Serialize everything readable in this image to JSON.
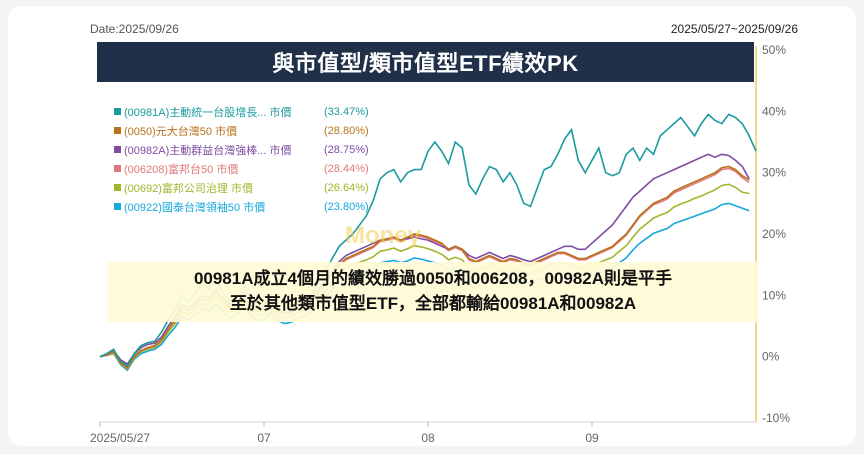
{
  "header": {
    "date_label": "Date:2025/09/26",
    "range_label": "2025/05/27~2025/09/26",
    "title": "與市值型/類市值型ETF績效PK"
  },
  "watermark": "Money",
  "caption": {
    "line1": "00981A成立4個月的績效勝過0050和006208，00982A則是平手",
    "line2": "至於其他類市值型ETF，全部都輸給00981A和00982A"
  },
  "chart_data": {
    "type": "line",
    "title": "與市值型/類市值型ETF績效PK",
    "xlabel": "",
    "ylabel": "",
    "ylim": [
      -10,
      50
    ],
    "y_ticks": [
      "50%",
      "40%",
      "30%",
      "20%",
      "10%",
      "0%",
      "-10%"
    ],
    "y_tick_values": [
      50,
      40,
      30,
      20,
      10,
      0,
      -10
    ],
    "x_ticks": [
      "2025/05/27",
      "07",
      "08",
      "09"
    ],
    "x_tick_positions": [
      0,
      24,
      48,
      72
    ],
    "grid": false,
    "legend_position": "top-left",
    "series": [
      {
        "name": "(00981A)主動統一台股增長... 市價",
        "label": "(33.47%)",
        "color": "#1b9aa0",
        "values": [
          0,
          0.5,
          1.2,
          -0.8,
          -1.5,
          0.5,
          1.8,
          2.3,
          2.5,
          4,
          6,
          7.5,
          10,
          9,
          10.5,
          12,
          11,
          12.5,
          10.5,
          9,
          9.5,
          11.5,
          9.5,
          8,
          8.5,
          10,
          8,
          7,
          7.5,
          8.5,
          9,
          10,
          12,
          14,
          16,
          18,
          19,
          20,
          21.5,
          23,
          25.5,
          29,
          30,
          30.5,
          28.5,
          30,
          30.5,
          30.5,
          33.5,
          35,
          33.5,
          31.5,
          35,
          34,
          28,
          26.5,
          29,
          31,
          30.5,
          28.5,
          30,
          28,
          25,
          24.5,
          27.5,
          30.5,
          31,
          33,
          35.5,
          37,
          32,
          30,
          32,
          34,
          30,
          29.5,
          30,
          33,
          34,
          32,
          34,
          33,
          36,
          37,
          38,
          39,
          37.5,
          36,
          38,
          39.5,
          38.5,
          38,
          39.5,
          39,
          38,
          36,
          33.5
        ]
      },
      {
        "name": "(0050)元大台灣50 市價",
        "label": "(28.80%)",
        "color": "#b8721c",
        "values": [
          0,
          0.3,
          0.8,
          -1,
          -1.8,
          0,
          1,
          1.5,
          1.8,
          2.8,
          4.5,
          6,
          8,
          7.5,
          8.5,
          9.5,
          9,
          10.5,
          9,
          8,
          8.5,
          10,
          8.5,
          7.5,
          7.8,
          9,
          7.5,
          7,
          7.2,
          8,
          8.5,
          9,
          10.5,
          12,
          13.5,
          15,
          16,
          16.5,
          17,
          17.5,
          18,
          19,
          19.2,
          19.5,
          19,
          19.5,
          20,
          19.8,
          19.5,
          19,
          18.5,
          17.5,
          18,
          17.5,
          16,
          15.5,
          16,
          16.5,
          16,
          15.5,
          16,
          15.8,
          15.2,
          15,
          15.5,
          16,
          16.5,
          17,
          17,
          16.5,
          16,
          16,
          16.5,
          17,
          17.5,
          18,
          19,
          20,
          21.5,
          23,
          24,
          25,
          25.5,
          26,
          27,
          27.5,
          28,
          28.5,
          29,
          29.5,
          30,
          30.8,
          31,
          30.5,
          29.5,
          28.8
        ]
      },
      {
        "name": "(00982A)主動群益台灣強棒... 市價",
        "label": "(28.75%)",
        "color": "#7e4ca2",
        "values": [
          0,
          0.4,
          1,
          -0.5,
          -1.2,
          0.4,
          1.5,
          2,
          2.2,
          3.2,
          5,
          6.5,
          8.5,
          8,
          9,
          10,
          9.5,
          11,
          9.5,
          8.5,
          9,
          10.5,
          9,
          8,
          8.2,
          9.5,
          8,
          7.2,
          7.5,
          8.5,
          9,
          9.5,
          11,
          12.5,
          14,
          15.5,
          16.5,
          17,
          17.5,
          18,
          18.5,
          19,
          19.2,
          19.5,
          19,
          19.2,
          19.5,
          19.2,
          19,
          18.5,
          18,
          17.5,
          18,
          17.5,
          16.5,
          16,
          16.5,
          17,
          16.5,
          16,
          16.5,
          16.2,
          15.8,
          15.5,
          16,
          16.5,
          17,
          17.5,
          18,
          18,
          17.5,
          17.5,
          18.5,
          19.5,
          20.5,
          21.5,
          23,
          24.5,
          26,
          27,
          28,
          29,
          29.5,
          30,
          30.5,
          31,
          31.5,
          32,
          32.5,
          33,
          32.5,
          33,
          32.8,
          32,
          31,
          29
        ]
      },
      {
        "name": "(006208)富邦台50 市價",
        "label": "(28.44%)",
        "color": "#e0787a",
        "values": [
          0,
          0.3,
          0.7,
          -1,
          -1.9,
          0,
          1,
          1.4,
          1.7,
          2.7,
          4.4,
          5.9,
          7.9,
          7.4,
          8.4,
          9.4,
          8.9,
          10.4,
          8.9,
          7.9,
          8.4,
          9.9,
          8.4,
          7.4,
          7.7,
          8.9,
          7.4,
          6.9,
          7.1,
          7.9,
          8.4,
          8.9,
          10.4,
          11.9,
          13.4,
          14.9,
          15.8,
          16.3,
          16.8,
          17.3,
          17.8,
          18.8,
          19,
          19.3,
          18.8,
          19.3,
          19.8,
          19.6,
          19.3,
          18.8,
          18.3,
          17.3,
          17.8,
          17.3,
          15.8,
          15.3,
          15.8,
          16.3,
          15.8,
          15.3,
          15.8,
          15.6,
          15,
          14.8,
          15.3,
          15.8,
          16.3,
          16.8,
          16.8,
          16.3,
          15.8,
          15.8,
          16.3,
          16.8,
          17.3,
          17.8,
          18.8,
          19.8,
          21.3,
          22.8,
          23.8,
          24.8,
          25.2,
          25.7,
          26.7,
          27.2,
          27.7,
          28.2,
          28.7,
          29.2,
          29.7,
          30.5,
          30.7,
          30.2,
          29.2,
          28.4
        ]
      },
      {
        "name": "(00692)富邦公司治理 市價",
        "label": "(26.64%)",
        "color": "#a3b52a",
        "values": [
          0,
          0.2,
          0.6,
          -1.2,
          -2,
          -0.2,
          0.8,
          1.2,
          1.5,
          2.4,
          4,
          5.4,
          7.3,
          6.8,
          7.8,
          8.7,
          8.2,
          9.6,
          8.2,
          7.2,
          7.7,
          9.1,
          7.7,
          6.7,
          7,
          8.1,
          6.7,
          6.2,
          6.4,
          7.1,
          7.6,
          8.1,
          9.5,
          10.9,
          12.3,
          13.6,
          14.5,
          15,
          15.4,
          15.8,
          16.3,
          17.2,
          17.4,
          17.7,
          17.2,
          17.6,
          18.1,
          17.9,
          17.6,
          17.2,
          16.7,
          15.8,
          16.2,
          15.8,
          14.4,
          14,
          14.4,
          14.9,
          14.4,
          14,
          14.4,
          14.2,
          13.7,
          13.5,
          14,
          14.4,
          14.9,
          15.3,
          15.3,
          14.9,
          14.4,
          14.4,
          14.9,
          15.3,
          15.8,
          16.2,
          17.2,
          18.1,
          19.5,
          20.8,
          21.7,
          22.6,
          23.1,
          23.5,
          24.4,
          24.9,
          25.3,
          25.8,
          26.2,
          26.7,
          27.2,
          27.9,
          28.1,
          27.6,
          26.8,
          26.6
        ]
      },
      {
        "name": "(00922)國泰台灣領袖50 市價",
        "label": "(23.80%)",
        "color": "#14a8dc",
        "values": [
          0,
          0.2,
          0.5,
          -1.3,
          -2.2,
          -0.4,
          0.5,
          0.9,
          1.2,
          2,
          3.5,
          4.8,
          6.5,
          6,
          7,
          7.8,
          7.3,
          8.6,
          7.3,
          6.4,
          6.8,
          8.1,
          6.8,
          5.9,
          6.2,
          7.2,
          5.9,
          5.4,
          5.6,
          6.3,
          6.7,
          7.2,
          8.4,
          9.7,
          10.9,
          12.1,
          12.9,
          13.3,
          13.7,
          14.1,
          14.5,
          15.3,
          15.5,
          15.7,
          15.3,
          15.6,
          16.1,
          15.9,
          15.6,
          15.3,
          14.9,
          14.1,
          14.4,
          14.1,
          12.8,
          12.5,
          12.8,
          13.2,
          12.8,
          12.5,
          12.8,
          12.6,
          12.2,
          12,
          12.5,
          12.8,
          13.3,
          13.6,
          13.6,
          13.3,
          12.8,
          12.8,
          13.3,
          13.6,
          14.1,
          14.4,
          15.3,
          16.1,
          17.4,
          18.5,
          19.3,
          20.1,
          20.5,
          20.9,
          21.7,
          22.1,
          22.5,
          22.9,
          23.3,
          23.7,
          24.1,
          24.8,
          25,
          24.6,
          24.2,
          23.8
        ]
      }
    ]
  }
}
